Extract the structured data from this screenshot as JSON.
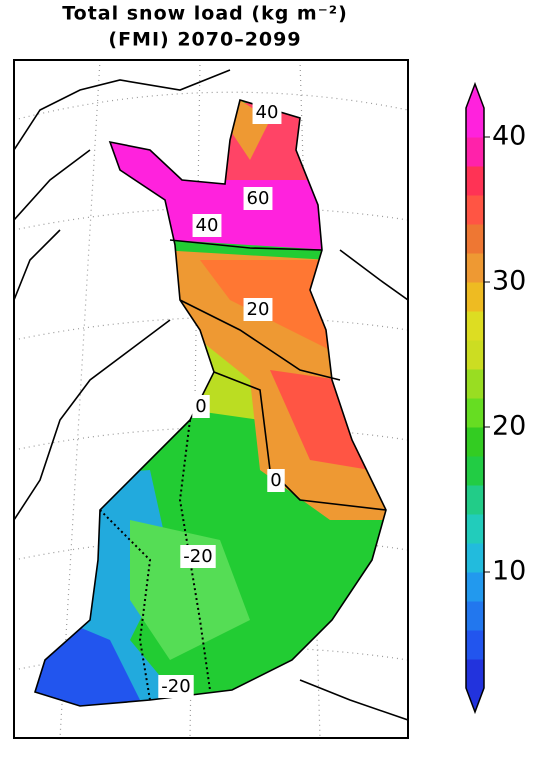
{
  "header": {
    "title_line1": "Total snow load (kg m⁻²)",
    "title_line2": "(FMI) 2070–2099"
  },
  "colorbar": {
    "lim": [
      2,
      42
    ],
    "ticks": [
      10,
      20,
      30,
      40
    ]
  },
  "contour_labels": [
    40,
    60,
    40,
    20,
    0,
    0,
    -20,
    -20
  ]
}
